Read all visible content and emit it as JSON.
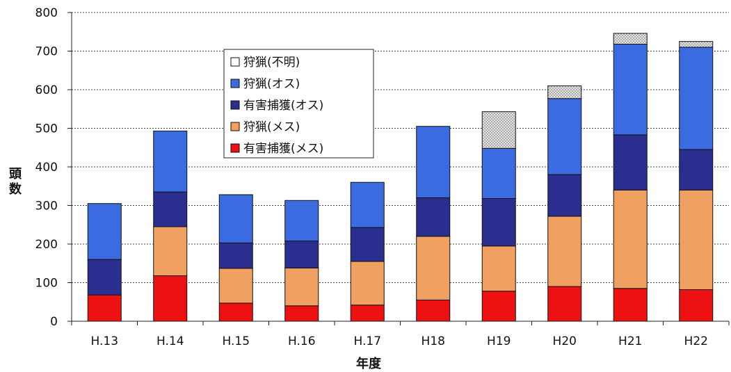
{
  "chart_data": {
    "type": "bar",
    "stacked": true,
    "categories": [
      "H.13",
      "H.14",
      "H.15",
      "H.16",
      "H.17",
      "H18",
      "H19",
      "H20",
      "H21",
      "H22"
    ],
    "xlabel": "年度",
    "ylabel": "頭数",
    "ylim": [
      0,
      800
    ],
    "yticks": [
      0,
      100,
      200,
      300,
      400,
      500,
      600,
      700,
      800
    ],
    "grid": true,
    "legend_position": "top-center",
    "series": [
      {
        "name": "有害捕獲(メス)",
        "color": "#ee1111",
        "values": [
          68,
          118,
          47,
          40,
          42,
          55,
          78,
          90,
          85,
          82
        ]
      },
      {
        "name": "狩猟(メス)",
        "color": "#f0a060",
        "values": [
          0,
          127,
          90,
          98,
          113,
          165,
          117,
          182,
          255,
          258
        ]
      },
      {
        "name": "有害捕獲(オス)",
        "color": "#2a2f8f",
        "values": [
          92,
          90,
          66,
          70,
          88,
          100,
          123,
          108,
          143,
          105
        ]
      },
      {
        "name": "狩猟(オス)",
        "color": "#3a6be0",
        "values": [
          145,
          158,
          125,
          105,
          117,
          185,
          130,
          197,
          235,
          265
        ]
      },
      {
        "name": "狩猟(不明)",
        "color": "#d8d8d8",
        "pattern": "dots",
        "values": [
          0,
          0,
          0,
          0,
          0,
          0,
          95,
          33,
          28,
          15
        ]
      }
    ],
    "legend_order": [
      "狩猟(不明)",
      "狩猟(オス)",
      "有害捕獲(オス)",
      "狩猟(メス)",
      "有害捕獲(メス)"
    ]
  }
}
